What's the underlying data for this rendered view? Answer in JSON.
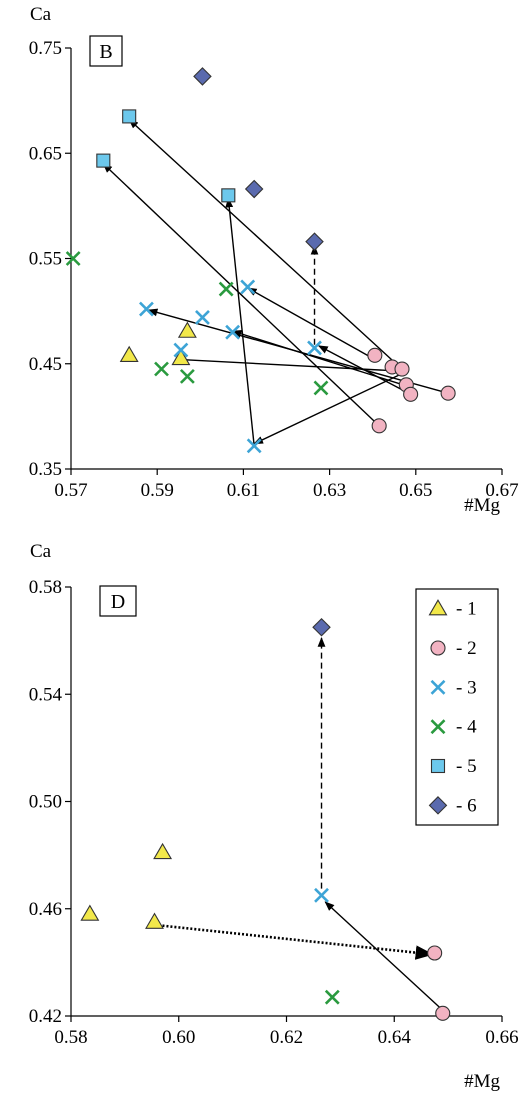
{
  "chart_data": [
    {
      "panel_label": "B",
      "type": "scatter",
      "xlabel": "#Mg",
      "ylabel": "Ca",
      "xlim": [
        0.57,
        0.67
      ],
      "ylim": [
        0.35,
        0.75
      ],
      "xticks": [
        "0.57",
        "0.59",
        "0.61",
        "0.63",
        "0.65",
        "0.67"
      ],
      "yticks": [
        "0.35",
        "0.45",
        "0.55",
        "0.65",
        "0.75"
      ],
      "grid": false,
      "series": [
        {
          "marker": "triangle",
          "color": "#f2e84a",
          "points": [
            [
              0.5835,
              0.458
            ],
            [
              0.5955,
              0.455
            ],
            [
              0.597,
              0.481
            ]
          ]
        },
        {
          "marker": "circle",
          "color": "#f2b3c2",
          "points": [
            [
              0.6405,
              0.458
            ],
            [
              0.6445,
              0.447
            ],
            [
              0.6468,
              0.445
            ],
            [
              0.6478,
              0.43
            ],
            [
              0.6488,
              0.421
            ],
            [
              0.6575,
              0.422
            ],
            [
              0.6415,
              0.391
            ]
          ]
        },
        {
          "marker": "x",
          "color": "#3da4d6",
          "points": [
            [
              0.5875,
              0.502
            ],
            [
              0.6005,
              0.494
            ],
            [
              0.6075,
              0.48
            ],
            [
              0.5955,
              0.463
            ],
            [
              0.611,
              0.523
            ],
            [
              0.6265,
              0.465
            ],
            [
              0.6125,
              0.372
            ]
          ]
        },
        {
          "marker": "x",
          "color": "#2a9a3f",
          "points": [
            [
              0.5705,
              0.55
            ],
            [
              0.591,
              0.445
            ],
            [
              0.597,
              0.438
            ],
            [
              0.606,
              0.521
            ],
            [
              0.628,
              0.427
            ]
          ]
        },
        {
          "marker": "square",
          "color": "#6cc8ec",
          "points": [
            [
              0.5835,
              0.685
            ],
            [
              0.5775,
              0.643
            ],
            [
              0.6065,
              0.61
            ]
          ]
        },
        {
          "marker": "diamond",
          "color": "#5a6aae",
          "points": [
            [
              0.6005,
              0.723
            ],
            [
              0.6125,
              0.616
            ],
            [
              0.6265,
              0.566
            ]
          ]
        }
      ],
      "arrows": [
        {
          "from": [
            0.6465,
            0.446
          ],
          "to": [
            0.5835,
            0.682
          ],
          "style": "solid"
        },
        {
          "from": [
            0.6415,
            0.391
          ],
          "to": [
            0.5775,
            0.64
          ],
          "style": "solid"
        },
        {
          "from": [
            0.6125,
            0.372
          ],
          "to": [
            0.6065,
            0.607
          ],
          "style": "solid"
        },
        {
          "from": [
            0.6405,
            0.454
          ],
          "to": [
            0.611,
            0.522
          ],
          "style": "solid"
        },
        {
          "from": [
            0.6575,
            0.422
          ],
          "to": [
            0.588,
            0.501
          ],
          "style": "solid"
        },
        {
          "from": [
            0.6478,
            0.429
          ],
          "to": [
            0.6075,
            0.481
          ],
          "style": "solid"
        },
        {
          "from": [
            0.6488,
            0.421
          ],
          "to": [
            0.6275,
            0.467
          ],
          "style": "solid"
        },
        {
          "from": [
            0.6465,
            0.44
          ],
          "to": [
            0.6125,
            0.374
          ],
          "style": "solid"
        },
        {
          "from": [
            0.5955,
            0.454
          ],
          "to": [
            0.6465,
            0.443
          ],
          "style": "solid"
        },
        {
          "from": [
            0.6265,
            0.468
          ],
          "to": [
            0.6265,
            0.562
          ],
          "style": "dashed"
        }
      ]
    },
    {
      "panel_label": "D",
      "type": "scatter",
      "xlabel": "#Mg",
      "ylabel": "Ca",
      "xlim": [
        0.58,
        0.66
      ],
      "ylim": [
        0.42,
        0.58
      ],
      "xticks": [
        "0.58",
        "0.60",
        "0.62",
        "0.64",
        "0.66"
      ],
      "yticks": [
        "0.42",
        "0.46",
        "0.50",
        "0.54",
        "0.58"
      ],
      "grid": false,
      "legend_position": "top-right",
      "legend": [
        {
          "label": "- 1",
          "marker": "triangle",
          "color": "#f2e84a"
        },
        {
          "label": "- 2",
          "marker": "circle",
          "color": "#f2b3c2"
        },
        {
          "label": "- 3",
          "marker": "x",
          "color": "#3da4d6"
        },
        {
          "label": "- 4",
          "marker": "x",
          "color": "#2a9a3f"
        },
        {
          "label": "- 5",
          "marker": "square",
          "color": "#6cc8ec"
        },
        {
          "label": "- 6",
          "marker": "diamond",
          "color": "#5a6aae"
        }
      ],
      "series": [
        {
          "marker": "triangle",
          "color": "#f2e84a",
          "points": [
            [
              0.5835,
              0.458
            ],
            [
              0.5955,
              0.455
            ],
            [
              0.597,
              0.481
            ]
          ]
        },
        {
          "marker": "circle",
          "color": "#f2b3c2",
          "points": [
            [
              0.6475,
              0.4435
            ],
            [
              0.649,
              0.421
            ]
          ]
        },
        {
          "marker": "x",
          "color": "#3da4d6",
          "points": [
            [
              0.6265,
              0.465
            ]
          ]
        },
        {
          "marker": "x",
          "color": "#2a9a3f",
          "points": [
            [
              0.6285,
              0.427
            ]
          ]
        },
        {
          "marker": "diamond",
          "color": "#5a6aae",
          "points": [
            [
              0.6265,
              0.565
            ]
          ]
        }
      ],
      "arrows": [
        {
          "from": [
            0.5955,
            0.454
          ],
          "to": [
            0.647,
            0.443
          ],
          "style": "dotted"
        },
        {
          "from": [
            0.6488,
            0.4225
          ],
          "to": [
            0.6272,
            0.4625
          ],
          "style": "solid"
        },
        {
          "from": [
            0.6265,
            0.4675
          ],
          "to": [
            0.6265,
            0.561
          ],
          "style": "dashed"
        }
      ]
    }
  ]
}
